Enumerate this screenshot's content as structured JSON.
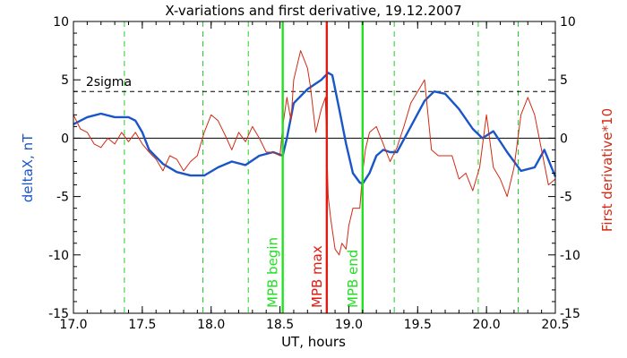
{
  "chart_data": {
    "type": "line",
    "title": "X-variations and first derivative, 19.12.2007",
    "xlabel": "UT, hours",
    "ylabel_left": "deltaX, nT",
    "ylabel_right": "First derivative*10",
    "xlim": [
      17.0,
      20.5
    ],
    "ylim": [
      -15,
      10
    ],
    "x_ticks": [
      "17.0",
      "17.5",
      "18.0",
      "18.5",
      "19.0",
      "19.5",
      "20.0",
      "20.5"
    ],
    "y_ticks_left": [
      "-15",
      "-10",
      "-5",
      "0",
      "5",
      "10"
    ],
    "y_ticks_right": [
      "-15",
      "-10",
      "-5",
      "0",
      "5",
      "10"
    ],
    "grid": false,
    "colors": {
      "deltaX": "#1a56c8",
      "derivative": "#d22a14",
      "mpb_begin": "#22e022",
      "mpb_max": "#e21a10",
      "mpb_end": "#22e022",
      "dashed_vlines": "#22d022",
      "reference_lines": "#000000"
    },
    "series": [
      {
        "key": "deltaX",
        "x": [
          17.0,
          17.1,
          17.2,
          17.3,
          17.4,
          17.45,
          17.5,
          17.55,
          17.65,
          17.75,
          17.85,
          17.95,
          18.05,
          18.15,
          18.25,
          18.35,
          18.45,
          18.52,
          18.55,
          18.6,
          18.7,
          18.8,
          18.85,
          18.88,
          18.93,
          18.98,
          19.03,
          19.08,
          19.1,
          19.15,
          19.2,
          19.25,
          19.3,
          19.35,
          19.45,
          19.55,
          19.62,
          19.7,
          19.8,
          19.9,
          19.97,
          20.05,
          20.15,
          20.25,
          20.35,
          20.42,
          20.5
        ],
        "values": [
          1.2,
          1.8,
          2.1,
          1.8,
          1.8,
          1.5,
          0.5,
          -1.0,
          -2.2,
          -2.9,
          -3.2,
          -3.2,
          -2.5,
          -2.0,
          -2.3,
          -1.5,
          -1.2,
          -1.5,
          0.0,
          3.0,
          4.2,
          5.0,
          5.6,
          5.4,
          2.5,
          -0.5,
          -3.0,
          -3.8,
          -3.9,
          -3.0,
          -1.5,
          -1.0,
          -1.2,
          -1.2,
          1.0,
          3.2,
          4.0,
          3.8,
          2.5,
          0.8,
          0.0,
          0.6,
          -1.2,
          -2.8,
          -2.5,
          -1.0,
          -3.3
        ]
      },
      {
        "key": "derivative",
        "x": [
          17.0,
          17.05,
          17.1,
          17.15,
          17.2,
          17.25,
          17.3,
          17.35,
          17.4,
          17.45,
          17.5,
          17.55,
          17.6,
          17.65,
          17.7,
          17.75,
          17.8,
          17.85,
          17.9,
          17.95,
          18.0,
          18.05,
          18.1,
          18.15,
          18.2,
          18.25,
          18.3,
          18.35,
          18.4,
          18.45,
          18.5,
          18.52,
          18.55,
          18.58,
          18.6,
          18.65,
          18.7,
          18.72,
          18.76,
          18.8,
          18.83,
          18.85,
          18.87,
          18.9,
          18.93,
          18.95,
          18.98,
          19.0,
          19.03,
          19.05,
          19.08,
          19.1,
          19.12,
          19.15,
          19.2,
          19.25,
          19.3,
          19.35,
          19.4,
          19.45,
          19.5,
          19.55,
          19.6,
          19.65,
          19.7,
          19.75,
          19.8,
          19.85,
          19.9,
          19.95,
          20.0,
          20.05,
          20.1,
          20.15,
          20.2,
          20.25,
          20.3,
          20.35,
          20.4,
          20.45,
          20.5
        ],
        "values": [
          2.0,
          0.8,
          0.5,
          -0.5,
          -0.8,
          0.0,
          -0.5,
          0.5,
          -0.3,
          0.5,
          -0.5,
          -1.2,
          -1.8,
          -2.8,
          -1.5,
          -1.8,
          -2.8,
          -2.0,
          -1.5,
          0.5,
          2.0,
          1.5,
          0.3,
          -1.0,
          0.5,
          -0.3,
          1.0,
          0.0,
          -1.2,
          -1.2,
          -1.5,
          1.0,
          3.5,
          1.5,
          5.0,
          7.5,
          6.0,
          4.5,
          0.5,
          2.5,
          3.5,
          -5.0,
          -7.0,
          -9.5,
          -10.0,
          -9.0,
          -9.5,
          -7.5,
          -6.0,
          -6.0,
          -6.0,
          -3.0,
          -1.0,
          0.5,
          1.0,
          -0.5,
          -2.0,
          -0.8,
          1.0,
          3.0,
          4.0,
          5.0,
          -1.0,
          -1.5,
          -1.5,
          -1.5,
          -3.5,
          -3.0,
          -4.5,
          -2.5,
          2.0,
          -2.5,
          -3.5,
          -5.0,
          -2.5,
          2.0,
          3.5,
          2.0,
          -1.0,
          -4.0,
          -3.5
        ]
      }
    ],
    "reference_lines": [
      {
        "y": 4.0,
        "style": "dashed",
        "label": "2sigma"
      },
      {
        "y": 0.0,
        "style": "solid"
      }
    ],
    "dashed_vlines_x": [
      17.37,
      17.94,
      18.27,
      19.33,
      19.94,
      20.23
    ],
    "event_lines": [
      {
        "x": 18.52,
        "label": "MPB begin",
        "color_key": "mpb_begin"
      },
      {
        "x": 18.84,
        "label": "MPB max",
        "color_key": "mpb_max"
      },
      {
        "x": 19.1,
        "label": "MPB end",
        "color_key": "mpb_end"
      }
    ]
  }
}
